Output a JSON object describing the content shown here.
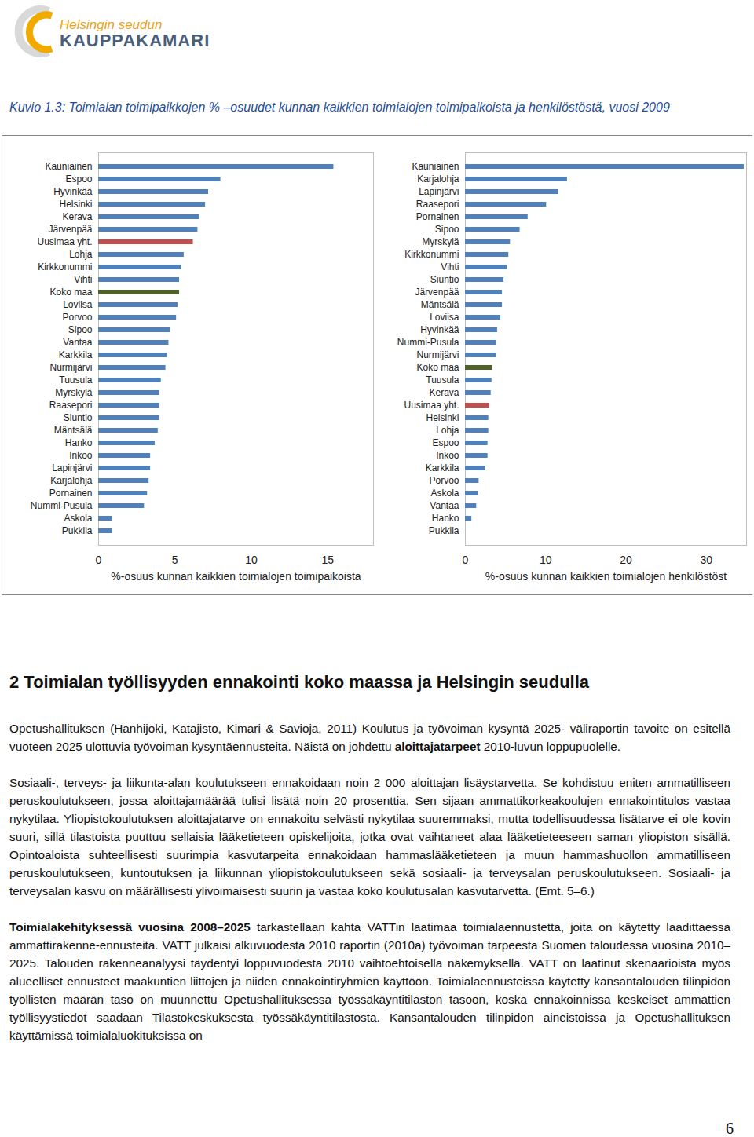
{
  "header": {
    "logo_line1": "Helsingin seudun",
    "logo_line2": "KAUPPAKAMARI"
  },
  "caption": "Kuvio 1.3: Toimialan toimipaikkojen % –osuudet kunnan kaikkien toimialojen toimipaikoista ja henkilöstöstä, vuosi 2009",
  "chart_data": [
    {
      "type": "bar",
      "orientation": "horizontal",
      "xlabel": "%-osuus kunnan kaikkien toimialojen toimipaikoista",
      "categories": [
        "Kauniainen",
        "Espoo",
        "Hyvinkää",
        "Helsinki",
        "Kerava",
        "Järvenpää",
        "Uusimaa yht.",
        "Lohja",
        "Kirkkonummi",
        "Vihti",
        "Koko maa",
        "Loviisa",
        "Porvoo",
        "Sipoo",
        "Vantaa",
        "Karkkila",
        "Nurmijärvi",
        "Tuusula",
        "Myrskylä",
        "Raasepori",
        "Siuntio",
        "Mäntsälä",
        "Hanko",
        "Inkoo",
        "Lapinjärvi",
        "Karjalohja",
        "Pornainen",
        "Nummi-Pusula",
        "Askola",
        "Pukkila"
      ],
      "values": [
        15.4,
        8.0,
        7.2,
        7.0,
        6.6,
        6.5,
        6.2,
        5.6,
        5.4,
        5.3,
        5.3,
        5.2,
        5.1,
        4.7,
        4.6,
        4.5,
        4.4,
        4.1,
        4.0,
        4.0,
        4.0,
        3.9,
        3.7,
        3.4,
        3.4,
        3.3,
        3.2,
        3.0,
        0.9,
        0.9
      ],
      "colors": [
        "#4f81bd",
        "#4f81bd",
        "#4f81bd",
        "#4f81bd",
        "#4f81bd",
        "#4f81bd",
        "#c0504d",
        "#4f81bd",
        "#4f81bd",
        "#4f81bd",
        "#4f6228",
        "#4f81bd",
        "#4f81bd",
        "#4f81bd",
        "#4f81bd",
        "#4f81bd",
        "#4f81bd",
        "#4f81bd",
        "#4f81bd",
        "#4f81bd",
        "#4f81bd",
        "#4f81bd",
        "#4f81bd",
        "#4f81bd",
        "#4f81bd",
        "#4f81bd",
        "#4f81bd",
        "#4f81bd",
        "#4f81bd",
        "#4f81bd"
      ],
      "xlim": [
        0,
        18
      ],
      "xticks": [
        0,
        5,
        10,
        15
      ],
      "grid": false
    },
    {
      "type": "bar",
      "orientation": "horizontal",
      "xlabel": "%-osuus kunnan kaikkien toimialojen henkilöstöst",
      "categories": [
        "Kauniainen",
        "Karjalohja",
        "Lapinjärvi",
        "Raasepori",
        "Pornainen",
        "Sipoo",
        "Myrskylä",
        "Kirkkonummi",
        "Vihti",
        "Siuntio",
        "Järvenpää",
        "Mäntsälä",
        "Loviisa",
        "Hyvinkää",
        "Nummi-Pusula",
        "Nurmijärvi",
        "Koko maa",
        "Tuusula",
        "Kerava",
        "Uusimaa yht.",
        "Helsinki",
        "Lohja",
        "Espoo",
        "Inkoo",
        "Karkkila",
        "Porvoo",
        "Askola",
        "Vantaa",
        "Hanko",
        "Pukkila"
      ],
      "values": [
        34.7,
        12.7,
        11.6,
        10.1,
        7.8,
        6.8,
        5.6,
        5.4,
        5.2,
        4.8,
        4.6,
        4.6,
        4.4,
        4.0,
        3.9,
        3.9,
        3.4,
        3.3,
        3.2,
        3.0,
        2.9,
        2.9,
        2.8,
        2.8,
        2.5,
        1.7,
        1.6,
        1.4,
        0.8,
        0
      ],
      "colors": [
        "#4f81bd",
        "#4f81bd",
        "#4f81bd",
        "#4f81bd",
        "#4f81bd",
        "#4f81bd",
        "#4f81bd",
        "#4f81bd",
        "#4f81bd",
        "#4f81bd",
        "#4f81bd",
        "#4f81bd",
        "#4f81bd",
        "#4f81bd",
        "#4f81bd",
        "#4f81bd",
        "#4f6228",
        "#4f81bd",
        "#4f81bd",
        "#c0504d",
        "#4f81bd",
        "#4f81bd",
        "#4f81bd",
        "#4f81bd",
        "#4f81bd",
        "#4f81bd",
        "#4f81bd",
        "#4f81bd",
        "#4f81bd",
        "#4f81bd"
      ],
      "xlim": [
        0,
        35
      ],
      "xticks": [
        0,
        10,
        20,
        30
      ],
      "grid": false
    }
  ],
  "heading": "2 Toimialan työllisyyden ennakointi koko maassa ja Helsingin seudulla",
  "paragraphs": [
    [
      {
        "text": "Opetushallituksen (Hanhijoki, Katajisto, Kimari & Savioja, 2011) Koulutus ja työvoiman kysyntä 2025- väliraportin tavoite on esitellä vuoteen 2025 ulottuvia työvoiman kysyntäennusteita. Näistä on johdettu ",
        "bold": false
      },
      {
        "text": "aloittajatarpeet",
        "bold": true
      },
      {
        "text": " 2010-luvun loppupuolelle.",
        "bold": false
      }
    ],
    [
      {
        "text": "Sosiaali-, terveys- ja liikunta-alan koulutukseen ennakoidaan noin 2 000 aloittajan lisäystarvetta. Se kohdistuu eniten ammatilliseen peruskoulutukseen, jossa aloittajamäärää tulisi lisätä noin 20 prosenttia. Sen sijaan ammattikorkeakoulujen ennakointitulos vastaa nykytilaa. Yliopistokoulutuksen aloittajatarve on ennakoitu selvästi nykytilaa suuremmaksi, mutta todellisuudessa lisätarve ei ole kovin suuri, sillä tilastoista puuttuu sellaisia lääketieteen opiskelijoita, jotka ovat vaihtaneet alaa lääketieteeseen saman yliopiston sisällä. Opintoaloista suhteellisesti suurimpia kasvutarpeita ennakoidaan hammaslääketieteen ja muun hammashuollon ammatilliseen peruskoulutukseen, kuntoutuksen ja liikunnan yliopistokoulutukseen sekä sosiaali- ja terveysalan peruskoulutukseen. Sosiaali- ja terveysalan kasvu on määrällisesti ylivoimaisesti suurin ja vastaa koko koulutusalan kasvutarvetta. (Emt. 5–6.)",
        "bold": false
      }
    ],
    [
      {
        "text": "Toimialakehityksessä vuosina 2008–2025",
        "bold": true
      },
      {
        "text": " tarkastellaan kahta VATTin laatimaa toimialaennustetta, joita on käytetty laadittaessa ammattirakenne-ennusteita. VATT julkaisi alkuvuodesta 2010 raportin (2010a) työvoiman tarpeesta Suomen taloudessa vuosina 2010–2025. Talouden rakenneanalyysi täydentyi loppuvuodesta 2010 vaihtoehtoisella näkemyksellä. VATT on laatinut skenaarioista myös alueelliset ennusteet maakuntien liittojen ja niiden ennakointiryhmien käyttöön. Toimialaennusteissa käytetty kansantalouden tilinpidon työllisten määrän taso on muunnettu Opetushallituksessa työssäkäyntitilaston tasoon, koska ennakoinnissa keskeiset ammattien työllisyystiedot saadaan Tilastokeskuksesta työssäkäyntitilastosta. Kansantalouden tilinpidon aineistoissa ja Opetushallituksen käyttämissä toimialaluokituksissa on",
        "bold": false
      }
    ]
  ],
  "page_number": "6"
}
